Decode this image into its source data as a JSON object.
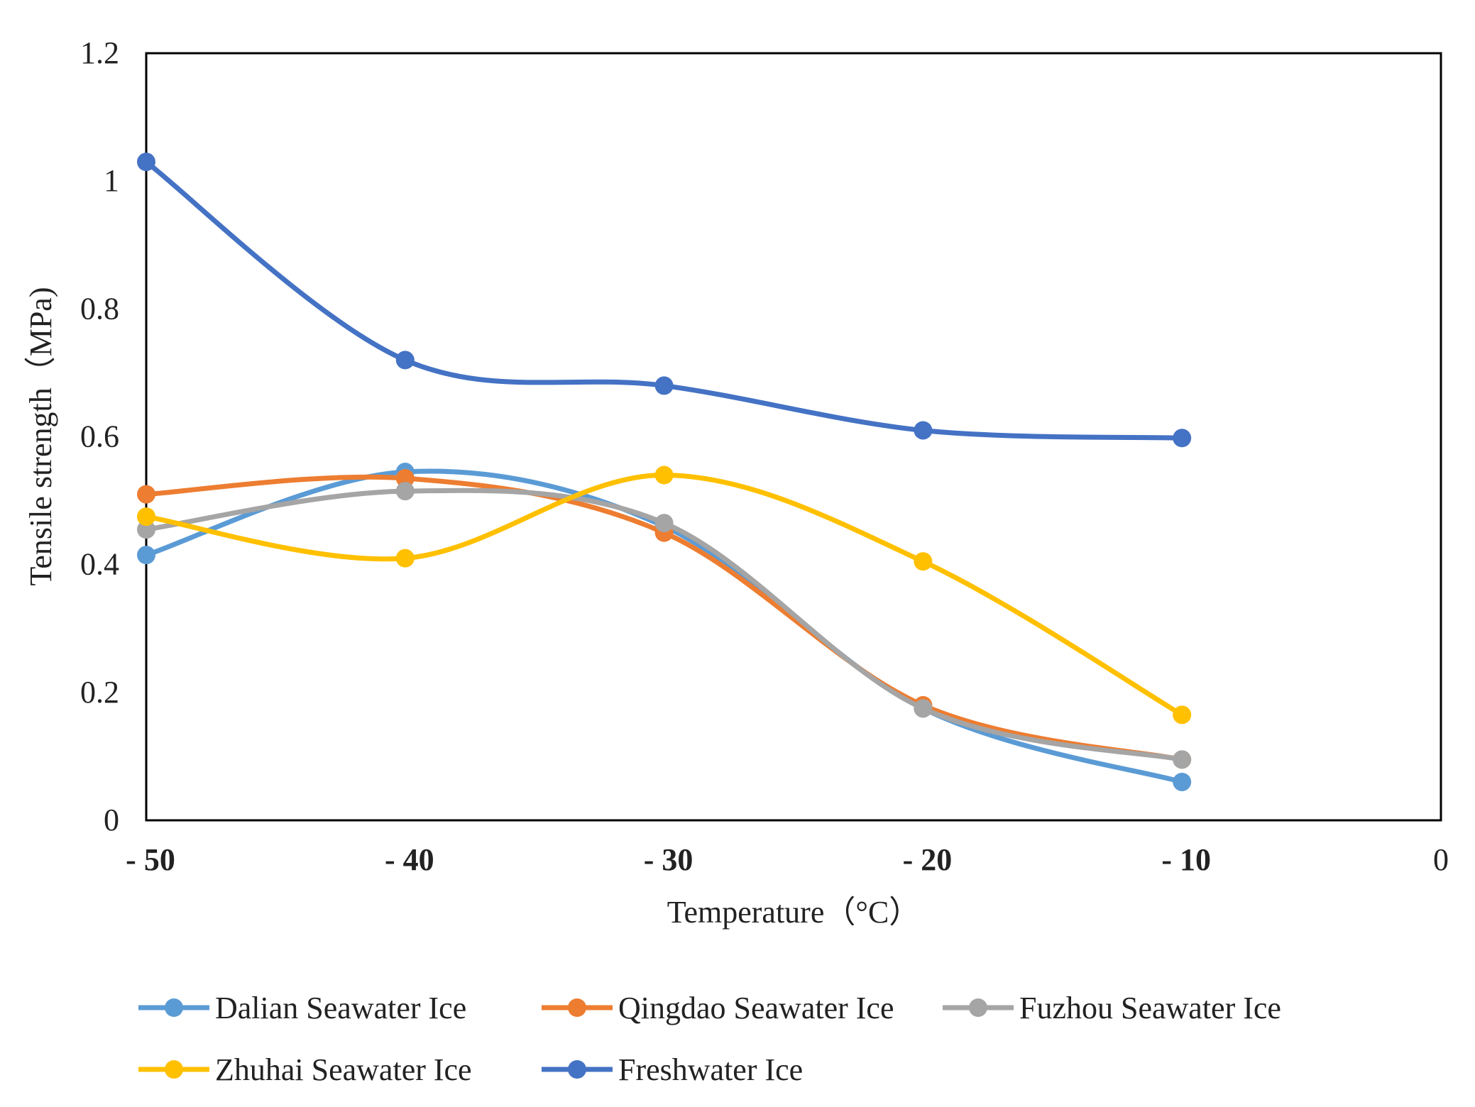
{
  "chart_data": {
    "type": "line",
    "title": "",
    "xlabel": "Temperature（°C）",
    "ylabel": "Tensile strength（MPa)",
    "xlim": [
      -50,
      0
    ],
    "ylim": [
      0,
      1.2
    ],
    "x_ticks": [
      {
        "value": -50,
        "label": "- 50"
      },
      {
        "value": -40,
        "label": "- 40"
      },
      {
        "value": -30,
        "label": "- 30"
      },
      {
        "value": -20,
        "label": "- 20"
      },
      {
        "value": -10,
        "label": "- 10"
      },
      {
        "value": 0,
        "label": "0"
      }
    ],
    "y_ticks": [
      {
        "value": 0,
        "label": "0"
      },
      {
        "value": 0.2,
        "label": "0.2"
      },
      {
        "value": 0.4,
        "label": "0.4"
      },
      {
        "value": 0.6,
        "label": "0.6"
      },
      {
        "value": 0.8,
        "label": "0.8"
      },
      {
        "value": 1.0,
        "label": "1"
      },
      {
        "value": 1.2,
        "label": "1.2"
      }
    ],
    "grid": false,
    "smooth": true,
    "legend_position": "bottom",
    "x": [
      -50,
      -40,
      -30,
      -20,
      -10
    ],
    "series": [
      {
        "name": "Dalian Seawater Ice",
        "color": "#5B9BD5",
        "values": [
          0.415,
          0.545,
          0.46,
          0.175,
          0.06
        ]
      },
      {
        "name": "Qingdao Seawater Ice",
        "color": "#ED7D31",
        "values": [
          0.51,
          0.535,
          0.45,
          0.18,
          0.095
        ]
      },
      {
        "name": "Fuzhou Seawater Ice",
        "color": "#A5A5A5",
        "values": [
          0.455,
          0.515,
          0.465,
          0.175,
          0.095
        ]
      },
      {
        "name": "Zhuhai Seawater Ice",
        "color": "#FFC000",
        "values": [
          0.475,
          0.41,
          0.54,
          0.405,
          0.165
        ]
      },
      {
        "name": "Freshwater Ice",
        "color": "#4472C4",
        "values": [
          1.03,
          0.72,
          0.68,
          0.61,
          0.598
        ]
      }
    ]
  }
}
